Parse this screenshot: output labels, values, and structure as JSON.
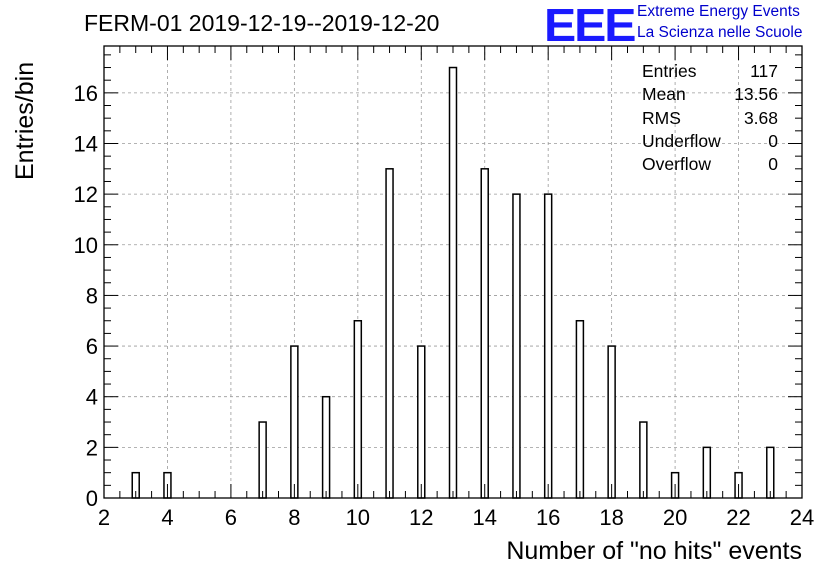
{
  "chart_data": {
    "type": "bar",
    "title": "FERM-01 2019-12-19--2019-12-20",
    "xlabel": "Number of \"no hits\" events",
    "ylabel": "Entries/bin",
    "xlim": [
      2,
      24
    ],
    "ylim": [
      0,
      17.85
    ],
    "xticks": [
      2,
      4,
      6,
      8,
      10,
      12,
      14,
      16,
      18,
      20,
      22,
      24
    ],
    "yticks": [
      0,
      2,
      4,
      6,
      8,
      10,
      12,
      14,
      16
    ],
    "grid": true,
    "bin_width": 0.22,
    "x": [
      3,
      4,
      7,
      8,
      9,
      10,
      11,
      12,
      13,
      14,
      15,
      16,
      17,
      18,
      19,
      20,
      21,
      22,
      23
    ],
    "values": [
      1,
      1,
      3,
      6,
      4,
      7,
      13,
      6,
      17,
      13,
      12,
      12,
      7,
      6,
      3,
      1,
      2,
      1,
      2
    ]
  },
  "stats": [
    {
      "key": "Entries",
      "value": "117"
    },
    {
      "key": "Mean",
      "value": "13.56"
    },
    {
      "key": "RMS",
      "value": "3.68"
    },
    {
      "key": "Underflow",
      "value": "0"
    },
    {
      "key": "Overflow",
      "value": "0"
    }
  ],
  "logo": {
    "mark": "EEE",
    "line1": "Extreme Energy Events",
    "line2": "La Scienza nelle Scuole",
    "color": "#1a1aff"
  }
}
